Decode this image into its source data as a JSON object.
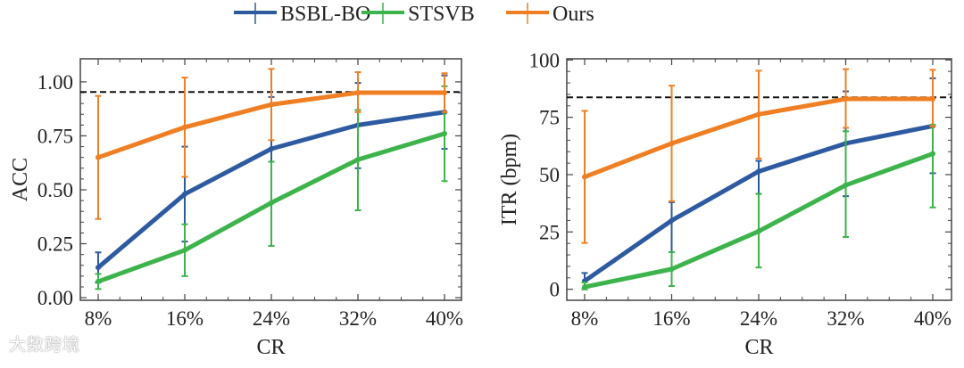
{
  "legend": [
    {
      "name": "BSBL-BO",
      "color": "#2d5aa0"
    },
    {
      "name": "STSVB",
      "color": "#3cb44b"
    },
    {
      "name": "Ours",
      "color": "#f07f23"
    }
  ],
  "watermark": "大数跨境",
  "chart_data": [
    {
      "type": "line",
      "title": "",
      "xlabel": "CR",
      "ylabel": "ACC",
      "categories": [
        "8%",
        "16%",
        "24%",
        "32%",
        "40%"
      ],
      "ylim": [
        -0.012,
        1.107
      ],
      "yticks": [
        0,
        0.25,
        0.5,
        0.75,
        1.0
      ],
      "ytick_labels": [
        "0.00",
        "0.25",
        "0.50",
        "0.75",
        "1.00"
      ],
      "reference_line": 0.953,
      "series": [
        {
          "name": "BSBL-BO",
          "values": [
            0.14,
            0.48,
            0.69,
            0.8,
            0.86
          ],
          "err_upper": [
            0.21,
            0.7,
            0.93,
            0.995,
            1.03
          ],
          "err_lower": [
            0.07,
            0.26,
            0.63,
            0.6,
            0.69
          ]
        },
        {
          "name": "STSVB",
          "values": [
            0.075,
            0.22,
            0.44,
            0.64,
            0.76
          ],
          "err_upper": [
            0.11,
            0.34,
            0.63,
            0.87,
            0.98
          ],
          "err_lower": [
            0.04,
            0.1,
            0.24,
            0.405,
            0.54
          ]
        },
        {
          "name": "Ours",
          "values": [
            0.65,
            0.79,
            0.895,
            0.95,
            0.95
          ],
          "err_upper": [
            0.935,
            1.02,
            1.06,
            1.045,
            1.04
          ],
          "err_lower": [
            0.365,
            0.56,
            0.73,
            0.86,
            0.86
          ]
        }
      ]
    },
    {
      "type": "line",
      "title": "",
      "xlabel": "CR",
      "ylabel": "ITR (bpm)",
      "categories": [
        "8%",
        "16%",
        "24%",
        "32%",
        "40%"
      ],
      "ylim": [
        -4.8,
        100.5
      ],
      "yticks": [
        0,
        25,
        50,
        75,
        100
      ],
      "ytick_labels": [
        "0",
        "25",
        "50",
        "75",
        "100"
      ],
      "reference_line": 83.7,
      "series": [
        {
          "name": "BSBL-BO",
          "values": [
            3.6,
            30,
            51.4,
            63.6,
            71.2
          ],
          "err_upper": [
            7.1,
            38,
            56,
            86.3,
            92
          ],
          "err_lower": [
            0,
            16.2,
            41.6,
            40.6,
            50.6
          ]
        },
        {
          "name": "STSVB",
          "values": [
            1,
            8.8,
            25.3,
            45.4,
            59.1
          ],
          "err_upper": [
            3,
            16.2,
            41.6,
            68.9,
            71.7
          ],
          "err_lower": [
            0,
            1.4,
            9.5,
            22.8,
            35.7
          ]
        },
        {
          "name": "Ours",
          "values": [
            49,
            63.6,
            76.3,
            83,
            83
          ],
          "err_upper": [
            77.8,
            88.8,
            95.3,
            96,
            95.7
          ],
          "err_lower": [
            20.2,
            38.4,
            57,
            70.4,
            71
          ]
        }
      ]
    }
  ]
}
